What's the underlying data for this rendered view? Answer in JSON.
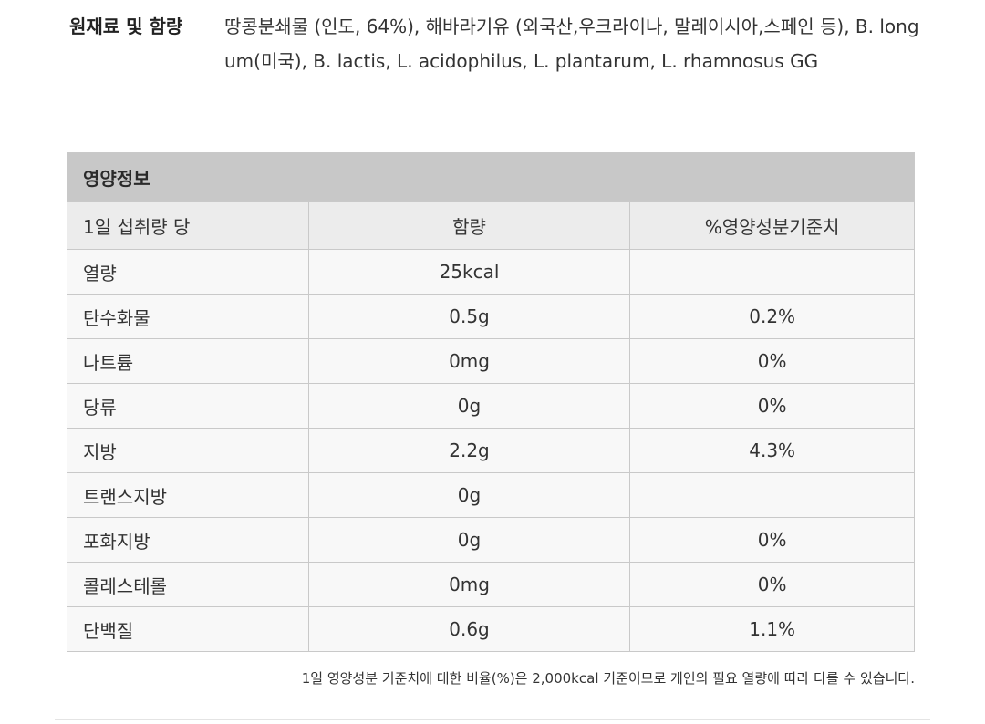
{
  "ingredients": {
    "label": "원재료 및 함량",
    "text": "땅콩분쇄물 (인도, 64%), 해바라기유 (외국산,우크라이나, 말레이시아,스페인 등), B. longum(미국), B. lactis, L. acidophilus, L. plantarum, L. rhamnosus GG"
  },
  "nutrition": {
    "title": "영양정보",
    "headers": [
      "1일 섭취량 당",
      "함량",
      "%영양성분기준치"
    ],
    "rows": [
      {
        "name": "열량",
        "amount": "25kcal",
        "daily": ""
      },
      {
        "name": "탄수화물",
        "amount": "0.5g",
        "daily": "0.2%"
      },
      {
        "name": "나트륨",
        "amount": "0mg",
        "daily": "0%"
      },
      {
        "name": "당류",
        "amount": "0g",
        "daily": "0%"
      },
      {
        "name": "지방",
        "amount": "2.2g",
        "daily": "4.3%"
      },
      {
        "name": "트랜스지방",
        "amount": "0g",
        "daily": ""
      },
      {
        "name": "포화지방",
        "amount": "0g",
        "daily": "0%"
      },
      {
        "name": "콜레스테롤",
        "amount": "0mg",
        "daily": "0%"
      },
      {
        "name": "단백질",
        "amount": "0.6g",
        "daily": "1.1%"
      }
    ]
  },
  "footnote": "1일 영양성분 기준치에 대한 비율(%)은 2,000kcal 기준이므로 개인의 필요 열량에 따라 다를 수 있습니다."
}
